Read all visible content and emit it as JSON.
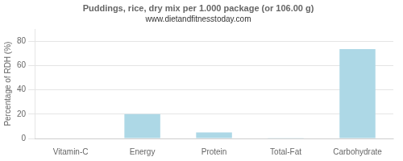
{
  "chart_data": {
    "type": "bar",
    "title": "Puddings, rice, dry mix per 1.000 package (or 106.00 g)",
    "subtitle": "www.dietandfitnesstoday.com",
    "categories": [
      "Vitamin-C",
      "Energy",
      "Protein",
      "Total-Fat",
      "Carbohydrate"
    ],
    "values": [
      0,
      20,
      5,
      0.5,
      73.5
    ],
    "color": "#add8e6",
    "ylabel": "Percentage of RDH (%)",
    "ylim": [
      0,
      90
    ],
    "yticks": [
      0,
      20,
      40,
      60,
      80
    ],
    "grid": true
  }
}
